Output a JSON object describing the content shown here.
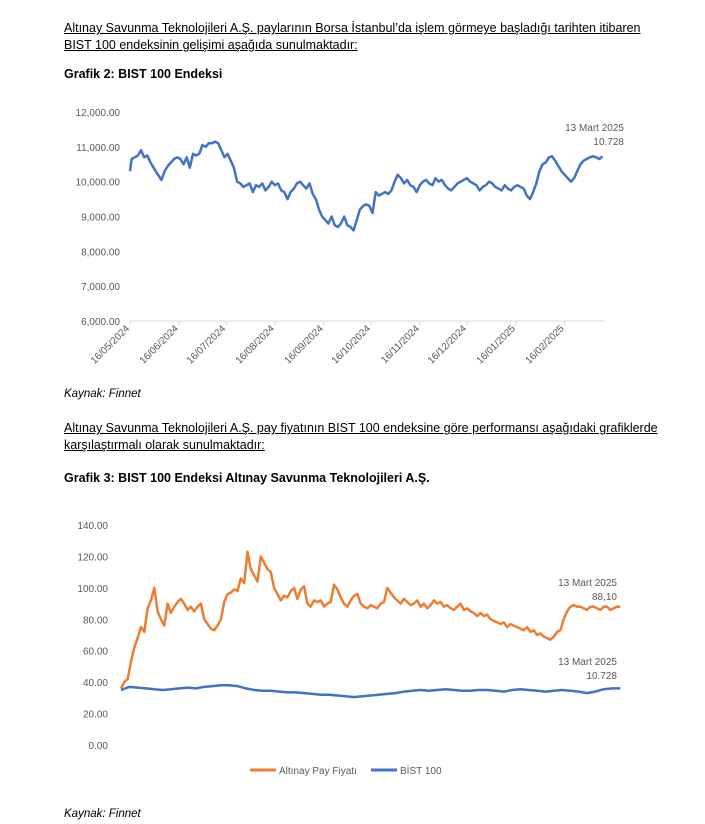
{
  "intro1": {
    "line1": "Altınay Savunma Teknolojileri A.Ş. paylarının Borsa İstanbul’da işlem görmeye başladığı tarihten itibaren",
    "line2": "BIST 100 endeksinin gelişimi aşağıda sunulmaktadır:"
  },
  "figure2": {
    "caption": "Grafik 2: BIST 100 Endeksi",
    "source": "Kaynak: Finnet"
  },
  "intro2": {
    "line1": "Altınay Savunma Teknolojileri A.Ş. pay fiyatının BIST 100 endeksine göre performansı aşağıdaki grafiklerde",
    "line2": "karşılaştırmalı olarak sunulmaktadır:"
  },
  "figure3": {
    "caption": "Grafik 3: BIST 100 Endeksi Altınay Savunma Teknolojileri A.Ş.",
    "source": "Kaynak: Finnet"
  },
  "colors": {
    "bist": "#4472C4",
    "altinay": "#ED7D31",
    "axis": "#595959",
    "grid": "#D9D9D9"
  },
  "chart_data": [
    {
      "type": "line",
      "title": "Grafik 2: BIST 100 Endeksi",
      "ylim": [
        6000,
        12000
      ],
      "ytick_values": [
        6000,
        7000,
        8000,
        9000,
        10000,
        11000,
        12000
      ],
      "ytick_labels": [
        "6,000.00",
        "7,000.00",
        "8,000.00",
        "9,000.00",
        "10,000.00",
        "11,000.00",
        "12,000.00"
      ],
      "xtick_labels": [
        "16/05/2024",
        "16/06/2024",
        "16/07/2024",
        "16/08/2024",
        "16/09/2024",
        "16/10/2024",
        "16/11/2024",
        "16/12/2024",
        "16/01/2025",
        "16/02/2025"
      ],
      "x_range_days": [
        0,
        301
      ],
      "xtick_days": [
        0,
        31,
        61,
        92,
        123,
        153,
        184,
        214,
        245,
        276
      ],
      "annotation": {
        "date": "13 Mart 2025",
        "value": "10.728"
      },
      "series": [
        {
          "name": "BIST 100",
          "x_days": [
            0,
            1,
            3,
            5,
            7,
            9,
            11,
            13,
            15,
            17,
            20,
            22,
            24,
            26,
            28,
            30,
            32,
            34,
            36,
            38,
            40,
            42,
            44,
            46,
            48,
            50,
            52,
            54,
            56,
            58,
            60,
            62,
            64,
            66,
            68,
            70,
            72,
            74,
            76,
            78,
            80,
            82,
            84,
            86,
            88,
            90,
            92,
            94,
            96,
            98,
            100,
            102,
            104,
            106,
            108,
            110,
            112,
            114,
            116,
            118,
            120,
            122,
            124,
            126,
            128,
            130,
            132,
            134,
            136,
            138,
            140,
            142,
            144,
            146,
            148,
            150,
            152,
            154,
            156,
            158,
            160,
            162,
            164,
            166,
            168,
            170,
            172,
            174,
            176,
            178,
            180,
            182,
            184,
            186,
            188,
            190,
            192,
            194,
            196,
            198,
            200,
            202,
            204,
            206,
            208,
            210,
            212,
            214,
            216,
            218,
            220,
            222,
            224,
            226,
            228,
            230,
            232,
            234,
            236,
            238,
            240,
            242,
            244,
            246,
            248,
            250,
            252,
            254,
            256,
            258,
            260,
            262,
            264,
            266,
            268,
            270,
            272,
            274,
            276,
            278,
            280,
            282,
            284,
            286,
            288,
            290,
            292,
            294,
            296,
            298,
            300
          ],
          "values": [
            10300,
            10650,
            10700,
            10750,
            10900,
            10700,
            10750,
            10550,
            10400,
            10250,
            10050,
            10300,
            10450,
            10550,
            10650,
            10700,
            10650,
            10500,
            10700,
            10400,
            10800,
            10750,
            10800,
            11050,
            11000,
            11100,
            11100,
            11150,
            11100,
            10900,
            10700,
            10800,
            10600,
            10400,
            10000,
            9950,
            9850,
            9900,
            9950,
            9700,
            9900,
            9850,
            9950,
            9750,
            9850,
            10000,
            9900,
            9950,
            9750,
            9700,
            9500,
            9700,
            9800,
            9950,
            10000,
            9900,
            9800,
            9950,
            9650,
            9500,
            9200,
            9000,
            8900,
            8800,
            9000,
            8750,
            8700,
            8800,
            9000,
            8750,
            8700,
            8600,
            8900,
            9200,
            9300,
            9350,
            9300,
            9100,
            9700,
            9600,
            9650,
            9700,
            9650,
            9750,
            10000,
            10200,
            10100,
            9950,
            10050,
            9900,
            9850,
            9700,
            9900,
            10000,
            10050,
            9950,
            9900,
            10100,
            10000,
            10050,
            9900,
            9800,
            9750,
            9850,
            9950,
            10000,
            10050,
            10100,
            10000,
            9950,
            9900,
            9750,
            9850,
            9900,
            10000,
            9950,
            9850,
            9800,
            9750,
            9900,
            9800,
            9750,
            9850,
            9900,
            9850,
            9800,
            9600,
            9500,
            9700,
            9950,
            10300,
            10500,
            10550,
            10700,
            10728,
            10600,
            10450,
            10300,
            10200,
            10100,
            10000,
            10100,
            10300,
            10500,
            10600,
            10650,
            10700,
            10728,
            10700,
            10650,
            10728
          ]
        }
      ]
    },
    {
      "type": "line",
      "title": "Grafik 3: BIST 100 Endeksi Altınay Savunma Teknolojileri A.Ş.",
      "ylim": [
        0,
        140
      ],
      "ytick_values": [
        0,
        20,
        40,
        60,
        80,
        100,
        120,
        140
      ],
      "ytick_labels": [
        "0.00",
        "20.00",
        "40.00",
        "60.00",
        "80.00",
        "100.00",
        "120.00",
        "140.00"
      ],
      "x_range_days": [
        0,
        301
      ],
      "legend_position": "bottom-center",
      "annotations": [
        {
          "series": "Altınay Pay Fiyatı",
          "date": "13 Mart 2025",
          "value": "88,10"
        },
        {
          "series": "BİST 100",
          "date": "13 Mart 2025",
          "value": "10.728"
        }
      ],
      "series": [
        {
          "name": "Altınay Pay Fiyatı",
          "x_days": [
            0,
            2,
            4,
            6,
            8,
            10,
            12,
            14,
            16,
            18,
            20,
            22,
            24,
            26,
            28,
            30,
            32,
            34,
            36,
            38,
            40,
            42,
            44,
            46,
            48,
            50,
            52,
            54,
            56,
            58,
            60,
            62,
            64,
            66,
            68,
            70,
            72,
            74,
            76,
            78,
            80,
            82,
            84,
            86,
            88,
            90,
            92,
            94,
            96,
            98,
            100,
            102,
            104,
            106,
            108,
            110,
            112,
            114,
            116,
            118,
            120,
            122,
            124,
            126,
            128,
            130,
            132,
            134,
            136,
            138,
            140,
            142,
            144,
            146,
            148,
            150,
            152,
            154,
            156,
            158,
            160,
            162,
            164,
            166,
            168,
            170,
            172,
            174,
            176,
            178,
            180,
            182,
            184,
            186,
            188,
            190,
            192,
            194,
            196,
            198,
            200,
            202,
            204,
            206,
            208,
            210,
            212,
            214,
            216,
            218,
            220,
            222,
            224,
            226,
            228,
            230,
            232,
            234,
            236,
            238,
            240,
            242,
            244,
            246,
            248,
            250,
            252,
            254,
            256,
            258,
            260,
            262,
            264,
            266,
            268,
            270,
            272,
            274,
            276,
            278,
            280,
            282,
            284,
            286,
            288,
            290,
            292,
            294,
            296,
            298,
            300
          ],
          "values": [
            36,
            40,
            42,
            53,
            62,
            68,
            75,
            72,
            87,
            92,
            100,
            85,
            80,
            76,
            90,
            84,
            88,
            91,
            93,
            90,
            86,
            88,
            85,
            88,
            90,
            80,
            77,
            74,
            73,
            76,
            80,
            91,
            96,
            97,
            99,
            98,
            106,
            103,
            123,
            112,
            108,
            104,
            120,
            116,
            112,
            110,
            100,
            96,
            92,
            95,
            94,
            98,
            100,
            93,
            99,
            101,
            90,
            88,
            92,
            91,
            92,
            88,
            90,
            91,
            102,
            99,
            94,
            90,
            88,
            92,
            95,
            96,
            90,
            88,
            87,
            89,
            88,
            87,
            90,
            91,
            100,
            97,
            94,
            92,
            90,
            93,
            91,
            89,
            90,
            92,
            88,
            90,
            87,
            89,
            92,
            90,
            91,
            88,
            89,
            87,
            86,
            88,
            90,
            86,
            87,
            85,
            84,
            82,
            84,
            82,
            83,
            80,
            79,
            78,
            77,
            78,
            75,
            77,
            76,
            75,
            74,
            73,
            75,
            72,
            73,
            70,
            71,
            69,
            68,
            67,
            69,
            72,
            73,
            80,
            85,
            88,
            89,
            88,
            88.1,
            87,
            86,
            88,
            88.1,
            87,
            86,
            88,
            88.1,
            86,
            87,
            88,
            88.1
          ]
        },
        {
          "name": "BİST 100",
          "x_days": [
            0,
            5,
            10,
            15,
            20,
            25,
            30,
            35,
            40,
            45,
            50,
            55,
            60,
            65,
            70,
            75,
            80,
            85,
            90,
            95,
            100,
            105,
            110,
            115,
            120,
            125,
            130,
            135,
            140,
            145,
            150,
            155,
            160,
            165,
            170,
            175,
            180,
            185,
            190,
            195,
            200,
            205,
            210,
            215,
            220,
            225,
            230,
            235,
            240,
            245,
            250,
            255,
            260,
            265,
            270,
            275,
            280,
            285,
            290,
            295,
            300
          ],
          "values": [
            35,
            37,
            36.5,
            36,
            35.5,
            35,
            35.5,
            36,
            36.5,
            36,
            37,
            37.5,
            38,
            38,
            37.5,
            36,
            35,
            34.5,
            34.5,
            34,
            33.5,
            33.5,
            33,
            32.5,
            32,
            32,
            31.5,
            31,
            30.5,
            31,
            31.5,
            32,
            32.5,
            33,
            34,
            34.5,
            35,
            34.5,
            35,
            35.5,
            35,
            34.5,
            34.5,
            35,
            35,
            34.5,
            34,
            35,
            35.5,
            35,
            34.5,
            34,
            34.5,
            35,
            34.5,
            34,
            33,
            34,
            35.5,
            36,
            36
          ]
        }
      ]
    }
  ]
}
